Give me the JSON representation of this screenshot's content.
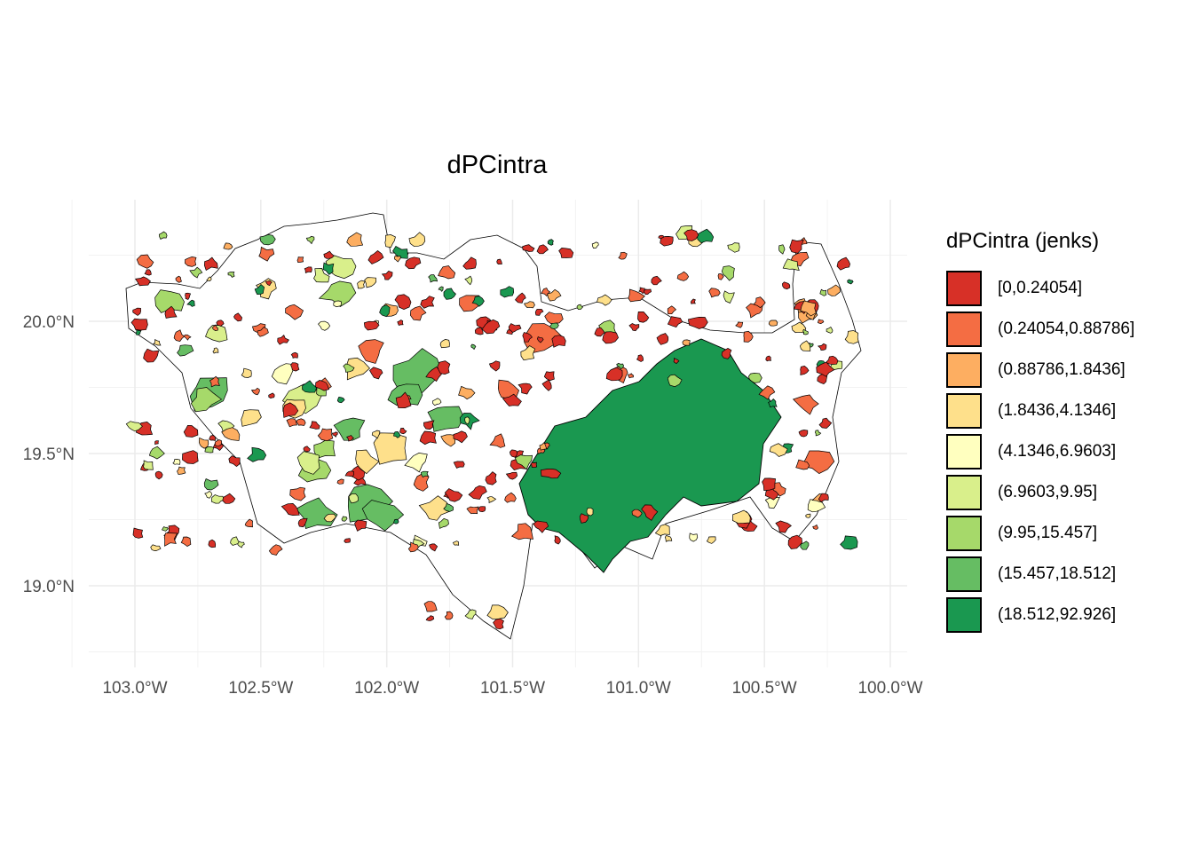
{
  "title": "dPCintra",
  "x_ticks": [
    "103.0°W",
    "102.5°W",
    "102.0°W",
    "101.5°W",
    "101.0°W",
    "100.5°W",
    "100.0°W"
  ],
  "y_ticks": [
    "20.0°N",
    "19.5°N",
    "19.0°N"
  ],
  "legend": {
    "title": "dPCintra (jenks)",
    "items": [
      {
        "label": "[0,0.24054]",
        "color": "#d73027"
      },
      {
        "label": "(0.24054,0.88786]",
        "color": "#f46d43"
      },
      {
        "label": "(0.88786,1.8436]",
        "color": "#fdae61"
      },
      {
        "label": "(1.8436,4.1346]",
        "color": "#fee08b"
      },
      {
        "label": "(4.1346,6.9603]",
        "color": "#ffffbf"
      },
      {
        "label": "(6.9603,9.95]",
        "color": "#d9ef8b"
      },
      {
        "label": "(9.95,15.457]",
        "color": "#a6d96a"
      },
      {
        "label": "(15.457,18.512]",
        "color": "#66bd63"
      },
      {
        "label": "(18.512,92.926]",
        "color": "#1a9850"
      }
    ]
  },
  "chart_data": {
    "type": "choropleth",
    "title": "dPCintra",
    "xlim": [
      -103.0,
      -100.0
    ],
    "ylim": [
      18.8,
      20.4
    ],
    "x_ticks": [
      -103.0,
      -102.5,
      -102.0,
      -101.5,
      -101.0,
      -100.5,
      -100.0
    ],
    "y_ticks": [
      20.0,
      19.5,
      19.0
    ],
    "classification": "jenks",
    "grid": true,
    "legend_position": "right"
  }
}
